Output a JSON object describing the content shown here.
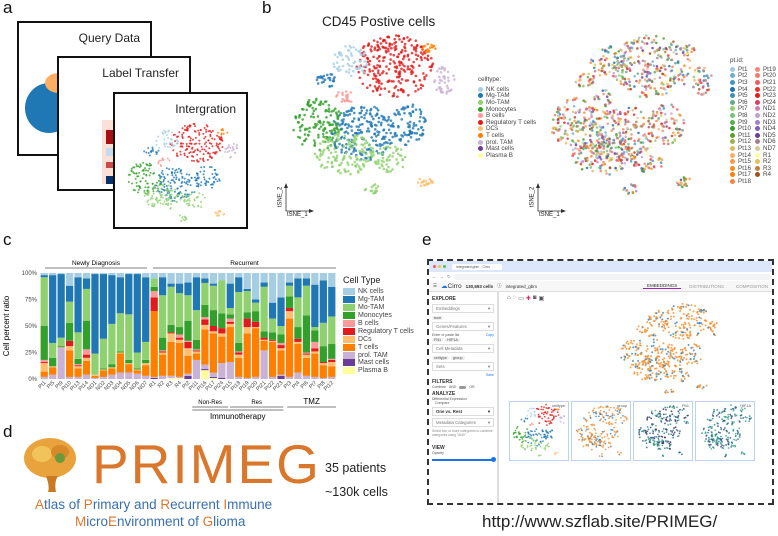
{
  "panel_labels": {
    "a": "a",
    "b": "b",
    "c": "c",
    "d": "d",
    "e": "e"
  },
  "panel_a": {
    "cards": [
      "Query Data",
      "Label Transfer",
      "Intergration"
    ]
  },
  "panel_b": {
    "title": "CD45 Postive cells",
    "axis_x": "tSNE_1",
    "axis_y": "tSNE_2",
    "celltype_legend_title": "celltype:",
    "ptid_legend_title": "pt.id:",
    "ptid": [
      "Pt1",
      "Pt2",
      "Pt3",
      "Pt4",
      "Pt5",
      "Pt6",
      "Pt7",
      "Pt8",
      "Pt9",
      "Pt10",
      "Pt11",
      "Pt12",
      "Pt13",
      "Pt14",
      "Pt15",
      "Pt16",
      "Pt17",
      "Pt18",
      "Pt19",
      "Pt20",
      "Pt21",
      "Pt22",
      "Pt23",
      "Pt24",
      "ND1",
      "ND2",
      "ND3",
      "ND4",
      "ND5",
      "ND6",
      "ND7",
      "R1",
      "R2",
      "R3",
      "R4"
    ],
    "ptid_colors": [
      "#9ecae1",
      "#6baed6",
      "#4292c6",
      "#2171b5",
      "#3d8fb8",
      "#66a88f",
      "#8fd16e",
      "#74c476",
      "#56b04a",
      "#33a02c",
      "#5aa02c",
      "#a0b050",
      "#e0b860",
      "#fdae61",
      "#fd9a40",
      "#ff8c1a",
      "#ff7f00",
      "#ff8040",
      "#f88870",
      "#f47a70",
      "#ef5a5a",
      "#e8322e",
      "#e31a1c",
      "#d94060",
      "#d080b0",
      "#c0a0d0",
      "#a080c8",
      "#8060b8",
      "#6a3d9a",
      "#a08090",
      "#d8c8a0",
      "#ffff99",
      "#e0c060",
      "#c08040",
      "#a05020"
    ]
  },
  "chart_data": {
    "type": "bar",
    "stacked": true,
    "title": "",
    "ylabel": "Cell percent ratio",
    "xlabel": "",
    "ylim": [
      0,
      100
    ],
    "yticks": [
      "0%",
      "25%",
      "50%",
      "75%",
      "100%"
    ],
    "legend_title": "Cell Type",
    "legend_placement": "right",
    "categories": [
      "Pt1",
      "Pt5",
      "Pt9",
      "Pt10",
      "Pt13",
      "Pt14",
      "ND1",
      "ND2",
      "ND3",
      "ND4",
      "ND5",
      "ND6",
      "ND7",
      "R1",
      "R2",
      "R3",
      "R4",
      "Pt2",
      "Pt11",
      "Pt16",
      "Pt17",
      "Pt24",
      "Pt15",
      "Pt18",
      "Pt19",
      "Pt20",
      "Pt21",
      "Pt22",
      "Pt23",
      "Pt3",
      "Pt4",
      "Pt6",
      "Pt7",
      "Pt8",
      "Pt12"
    ],
    "groups": {
      "newly": "Newly Diagnosis",
      "recurrent": "Recurrent",
      "non_res": "Non-Res",
      "res": "Res",
      "tmz": "TMZ",
      "immuno": "Immunotherapy"
    },
    "series": [
      {
        "name": "Plasma B",
        "color": "#ffff99",
        "values": [
          0,
          0,
          0,
          0,
          0,
          0,
          0,
          0,
          0,
          0,
          0,
          0,
          0,
          0,
          0,
          1,
          1,
          0,
          0,
          8,
          1,
          0,
          0,
          0,
          0,
          0,
          0,
          0,
          0,
          0,
          0,
          0,
          0,
          0,
          0
        ]
      },
      {
        "name": "Mast cells",
        "color": "#6a3d9a",
        "values": [
          0,
          0,
          0,
          0,
          0,
          0,
          0,
          0,
          0,
          0,
          0,
          0,
          0,
          1,
          0,
          0,
          0,
          3,
          0,
          1,
          1,
          1,
          0,
          0,
          0,
          0,
          0,
          0,
          3,
          0,
          0,
          0,
          0,
          0,
          0
        ]
      },
      {
        "name": "prol. TAM",
        "color": "#cab2d6",
        "values": [
          2,
          4,
          29,
          2,
          2,
          4,
          1,
          2,
          4,
          6,
          6,
          5,
          3,
          1,
          3,
          2,
          1,
          2,
          18,
          4,
          4,
          14,
          16,
          2,
          1,
          2,
          27,
          2,
          1,
          2,
          6,
          3,
          2,
          1,
          2
        ]
      },
      {
        "name": "T cells",
        "color": "#ff7f00",
        "values": [
          5,
          7,
          0,
          25,
          8,
          13,
          2,
          6,
          6,
          18,
          8,
          3,
          10,
          62,
          20,
          32,
          32,
          17,
          6,
          32,
          37,
          25,
          33,
          18,
          42,
          46,
          9,
          33,
          23,
          55,
          27,
          17,
          22,
          12,
          10
        ]
      },
      {
        "name": "DCs",
        "color": "#fdbf6f",
        "values": [
          8,
          1,
          0,
          4,
          2,
          3,
          1,
          1,
          1,
          1,
          1,
          1,
          2,
          0,
          2,
          8,
          3,
          7,
          2,
          4,
          2,
          3,
          3,
          3,
          6,
          1,
          1,
          1,
          2,
          7,
          2,
          3,
          2,
          2,
          4
        ]
      },
      {
        "name": "Regulatory T cells",
        "color": "#e31a1c",
        "values": [
          1,
          0,
          0,
          5,
          1,
          3,
          0,
          0,
          0,
          0,
          0,
          0,
          0,
          13,
          1,
          1,
          2,
          6,
          1,
          5,
          5,
          5,
          2,
          2,
          8,
          5,
          2,
          1,
          3,
          3,
          3,
          1,
          3,
          1,
          2
        ]
      },
      {
        "name": "B cells",
        "color": "#fb9a99",
        "values": [
          2,
          0,
          1,
          0,
          1,
          5,
          0,
          0,
          0,
          0,
          0,
          0,
          0,
          6,
          1,
          0,
          3,
          1,
          1,
          2,
          0,
          0,
          3,
          1,
          0,
          0,
          0,
          0,
          2,
          0,
          0,
          1,
          6,
          0,
          1
        ]
      },
      {
        "name": "Monocytes",
        "color": "#33a02c",
        "values": [
          32,
          8,
          1,
          17,
          5,
          27,
          0,
          1,
          3,
          1,
          3,
          1,
          3,
          4,
          12,
          7,
          7,
          19,
          9,
          11,
          15,
          14,
          4,
          8,
          6,
          10,
          6,
          7,
          8,
          11,
          11,
          35,
          11,
          15,
          14
        ]
      },
      {
        "name": "Mo-TAM",
        "color": "#8fd16e",
        "values": [
          46,
          14,
          8,
          20,
          25,
          30,
          20,
          28,
          38,
          36,
          43,
          15,
          17,
          8,
          40,
          36,
          32,
          24,
          28,
          20,
          23,
          31,
          6,
          48,
          20,
          8,
          42,
          13,
          8,
          10,
          28,
          28,
          3,
          22,
          26
        ]
      },
      {
        "name": "Mg-TAM",
        "color": "#1f78b4",
        "values": [
          2,
          64,
          60,
          15,
          52,
          10,
          75,
          61,
          46,
          34,
          38,
          74,
          61,
          0,
          17,
          3,
          9,
          12,
          31,
          4,
          2,
          0,
          23,
          14,
          2,
          3,
          4,
          15,
          27,
          3,
          18,
          7,
          40,
          40,
          28
        ]
      },
      {
        "name": "NK cells",
        "color": "#a6cee3",
        "values": [
          2,
          2,
          1,
          12,
          4,
          5,
          1,
          1,
          2,
          4,
          1,
          1,
          4,
          5,
          4,
          10,
          10,
          9,
          4,
          5,
          10,
          7,
          10,
          4,
          15,
          25,
          9,
          28,
          23,
          9,
          5,
          5,
          11,
          7,
          13
        ]
      }
    ]
  },
  "panel_d": {
    "logo_text": "PRIMEG",
    "tagline_1": [
      "A",
      "tlas of ",
      "P",
      "rimary and ",
      "R",
      "ecurrent ",
      "I",
      "mmune"
    ],
    "tagline_2": [
      "M",
      "icro",
      "E",
      "nvironment of ",
      "G",
      "lioma"
    ],
    "stat_patients": "35 patients",
    "stat_cells": "~130k cells"
  },
  "panel_e": {
    "tab_title": "integrated.gbm - Cirro",
    "app_name": "Cirro",
    "cell_count": "130,693 cells",
    "dataset": "integrated_gbm",
    "tabs": [
      "EMBEDDINGS",
      "DISTRIBUTIONS",
      "COMPOSITION"
    ],
    "sidebar": {
      "explore": "EXPLORE",
      "embeddings": "Embeddings",
      "embedding_chip": "tsne",
      "genes": "Genes/Features",
      "genes_hint": "Enter or paste list",
      "copy": "Copy",
      "gene_chips": [
        "FN1",
        "HIF1A"
      ],
      "metadata": "Cell Metadata",
      "metadata_chips": [
        "celltype",
        "group"
      ],
      "sets": "Sets",
      "save": "Save",
      "filters": "FILTERS",
      "combine": "Combine",
      "and": "AND",
      "or": "OR",
      "analyze": "ANALYZE",
      "diffexp": "Differential Expression",
      "compare": "Compare",
      "compare_value": "One vs. Rest",
      "meta_categories": "Metadata Categories",
      "meta_hint": "Select two or more categories to combine categories using \"AND\"",
      "view": "VIEW",
      "opacity": "Opacity"
    },
    "thumbnails": [
      "celltype",
      "group",
      "FN1",
      "HIF1A"
    ],
    "url": "http://www.szflab.site/PRIMEG/"
  }
}
